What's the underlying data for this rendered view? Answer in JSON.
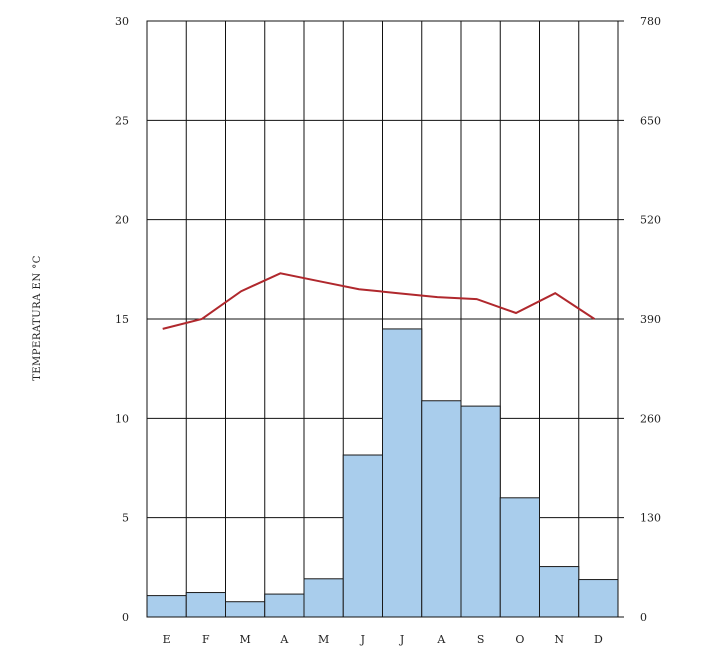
{
  "chart_data": {
    "type": "bar+line",
    "categories": [
      "E",
      "F",
      "M",
      "A",
      "M",
      "J",
      "J",
      "A",
      "S",
      "O",
      "N",
      "D"
    ],
    "ylabel": "TEMPERATURA EN °C",
    "y_left_ticks": [
      "0",
      "5",
      "10",
      "15",
      "20",
      "25",
      "30"
    ],
    "y_right_ticks": [
      "0",
      "130",
      "260",
      "390",
      "520",
      "650",
      "780"
    ],
    "ylim_left": [
      0,
      30
    ],
    "ylim_right": [
      0,
      780
    ],
    "grid": true,
    "colors": {
      "bars": "#a9cdec",
      "line": "#b0282d"
    },
    "series": [
      {
        "kind": "bar",
        "axis": "right",
        "values": [
          28,
          32,
          20,
          30,
          50,
          212,
          377,
          283,
          276,
          156,
          66,
          49
        ]
      },
      {
        "kind": "line",
        "axis": "left",
        "values": [
          14.5,
          15.0,
          16.4,
          17.3,
          16.9,
          16.5,
          16.3,
          16.1,
          16.0,
          15.3,
          16.3,
          15.0
        ]
      }
    ]
  }
}
